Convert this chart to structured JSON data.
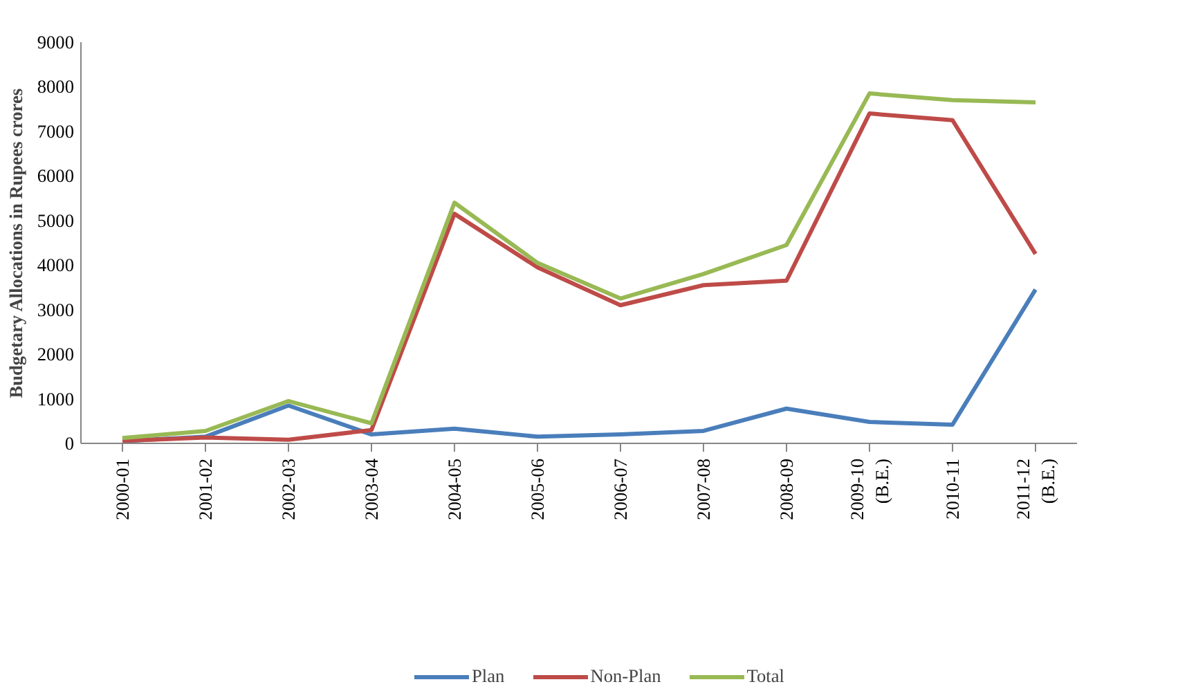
{
  "chart_data": {
    "type": "line",
    "ylabel": "Budgetary Allocations in Rupees crores",
    "categories": [
      "2000-01",
      "2001-02",
      "2002-03",
      "2003-04",
      "2004-05",
      "2005-06",
      "2006-07",
      "2007-08",
      "2008-09",
      "2009-10\n(B.E.)",
      "2010-11",
      "2011-12\n(B.E.)"
    ],
    "series": [
      {
        "name": "Plan",
        "color": "#4a7ebb",
        "values": [
          50,
          150,
          850,
          200,
          330,
          150,
          200,
          280,
          780,
          480,
          420,
          3450
        ]
      },
      {
        "name": "Non-Plan",
        "color": "#be4b48",
        "values": [
          60,
          130,
          80,
          300,
          5150,
          3950,
          3100,
          3550,
          3650,
          7400,
          7250,
          4250
        ]
      },
      {
        "name": "Total",
        "color": "#98b954",
        "values": [
          120,
          280,
          950,
          450,
          5400,
          4050,
          3250,
          3800,
          4450,
          7850,
          7700,
          7650
        ]
      }
    ],
    "ylim": [
      0,
      9000
    ],
    "yticks": [
      0,
      1000,
      2000,
      3000,
      4000,
      5000,
      6000,
      7000,
      8000,
      9000
    ],
    "grid": false,
    "legend": "bottom",
    "marker": "none",
    "line_style": "solid"
  }
}
